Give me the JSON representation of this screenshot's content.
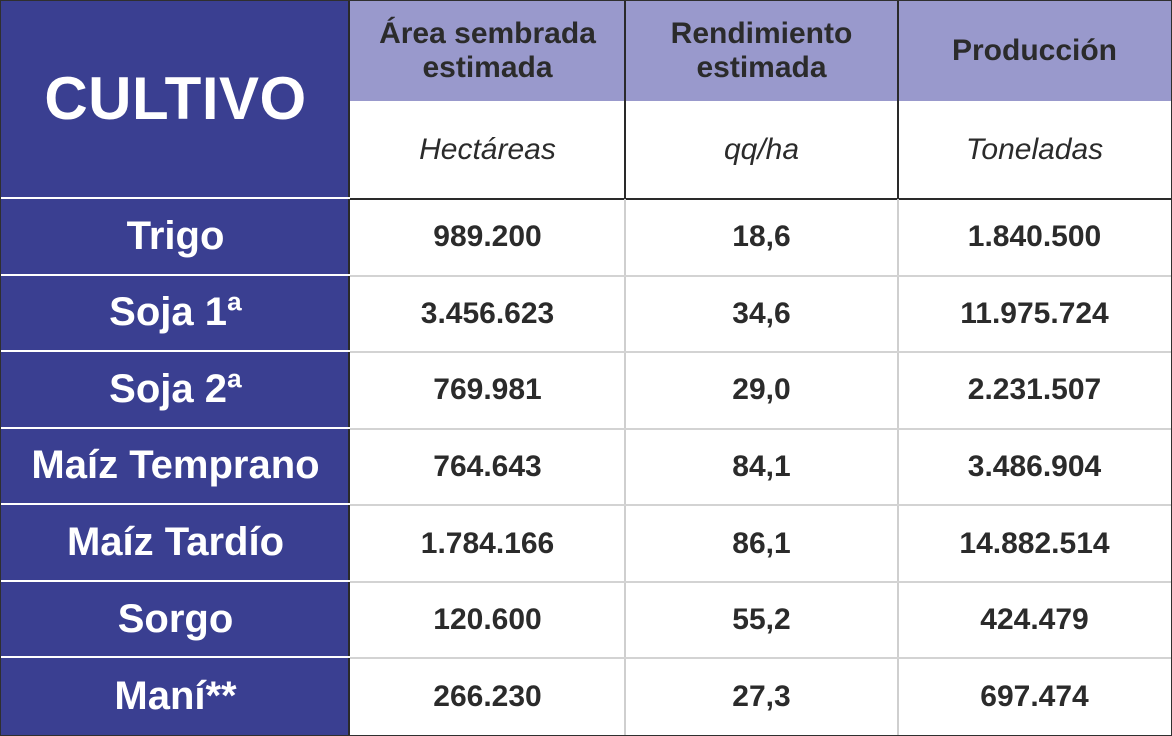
{
  "chart_data": {
    "type": "table",
    "columns": [
      {
        "header": "CULTIVO",
        "unit": ""
      },
      {
        "header": "Área sembrada estimada",
        "header_lines": [
          "Área sembrada",
          "estimada"
        ],
        "unit": "Hectáreas"
      },
      {
        "header": "Rendimiento estimada",
        "header_lines": [
          "Rendimiento",
          "estimada"
        ],
        "unit": "qq/ha"
      },
      {
        "header": "Producción",
        "header_lines": [
          "Producción"
        ],
        "unit": "Toneladas"
      }
    ],
    "rows": [
      {
        "cultivo": "Trigo",
        "area": "989.200",
        "rendimiento": "18,6",
        "produccion": "1.840.500"
      },
      {
        "cultivo": "Soja 1ª",
        "area": "3.456.623",
        "rendimiento": "34,6",
        "produccion": "11.975.724"
      },
      {
        "cultivo": "Soja 2ª",
        "area": "769.981",
        "rendimiento": "29,0",
        "produccion": "2.231.507"
      },
      {
        "cultivo": "Maíz Temprano",
        "area": "764.643",
        "rendimiento": "84,1",
        "produccion": "3.486.904"
      },
      {
        "cultivo": "Maíz Tardío",
        "area": "1.784.166",
        "rendimiento": "86,1",
        "produccion": "14.882.514"
      },
      {
        "cultivo": "Sorgo",
        "area": "120.600",
        "rendimiento": "55,2",
        "produccion": "424.479"
      },
      {
        "cultivo": "Maní**",
        "area": "266.230",
        "rendimiento": "27,3",
        "produccion": "697.474"
      }
    ]
  },
  "colors": {
    "crop_column_bg": "#3a3f91",
    "header_bg": "#9999cc",
    "text_dark": "#2b2b2b",
    "text_light": "#ffffff"
  }
}
